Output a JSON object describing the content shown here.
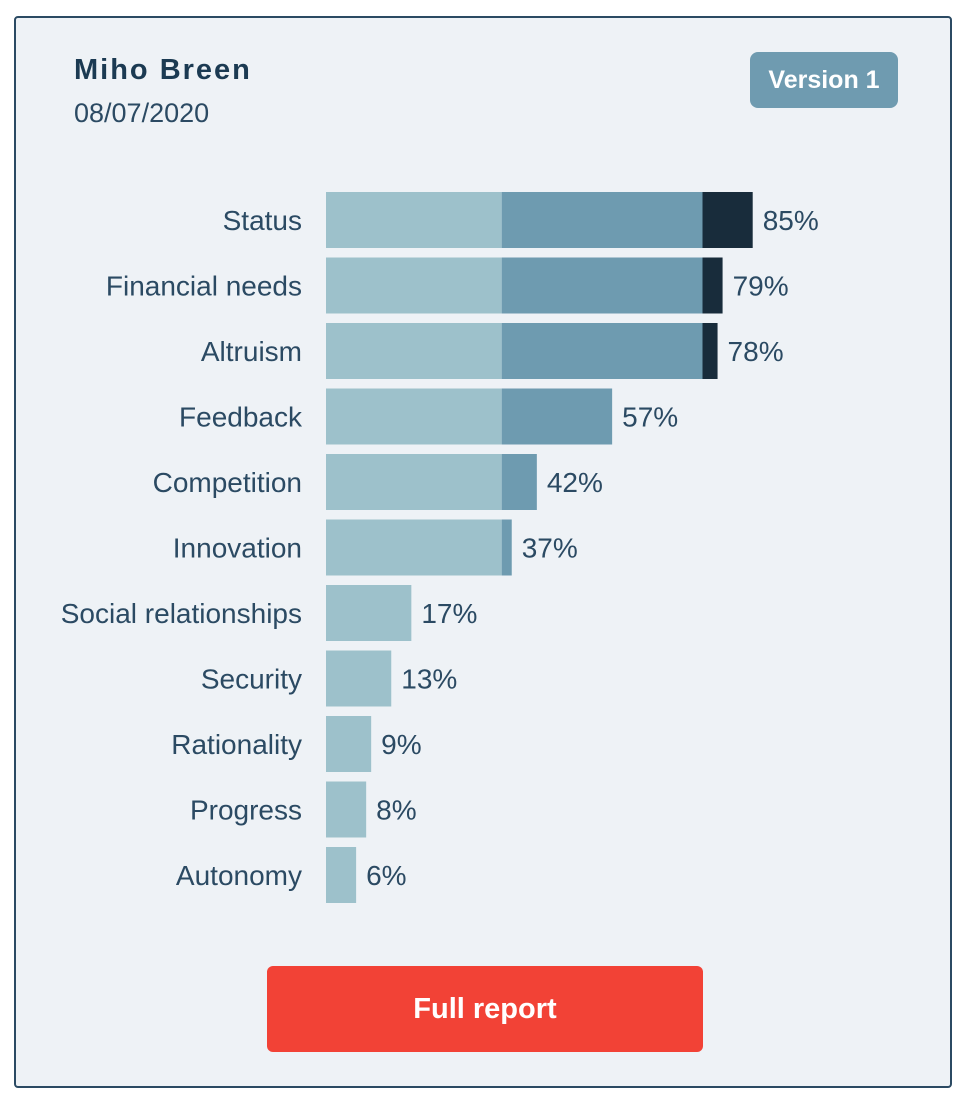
{
  "header": {
    "name": "Miho Breen",
    "date": "08/07/2020",
    "version_label": "Version 1"
  },
  "actions": {
    "full_report_label": "Full report"
  },
  "colors": {
    "tier_low": "#9dc1cb",
    "tier_mid": "#6e9bb0",
    "tier_high": "#182c3b",
    "label_text": "#2b4a63",
    "button_bg": "#f24236",
    "badge_bg": "#6f9bb0"
  },
  "chart_data": {
    "type": "bar",
    "orientation": "horizontal",
    "value_format": "percent",
    "xlim": [
      0,
      100
    ],
    "tier_thresholds": [
      35,
      75
    ],
    "categories": [
      "Status",
      "Financial needs",
      "Altruism",
      "Feedback",
      "Competition",
      "Innovation",
      "Social relationships",
      "Security",
      "Rationality",
      "Progress",
      "Autonomy"
    ],
    "values": [
      85,
      79,
      78,
      57,
      42,
      37,
      17,
      13,
      9,
      8,
      6
    ],
    "labels": [
      "85%",
      "79%",
      "78%",
      "57%",
      "42%",
      "37%",
      "17%",
      "13%",
      "9%",
      "8%",
      "6%"
    ]
  }
}
